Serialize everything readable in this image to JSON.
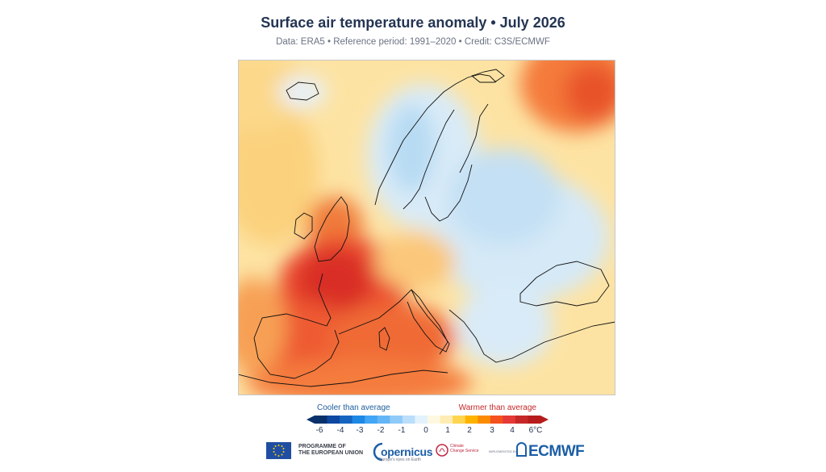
{
  "title": "Surface air temperature anomaly • July 2026",
  "subtitle": "Data: ERA5 • Reference period: 1991–2020 • Credit: C3S/ECMWF",
  "map": {
    "region": "Europe",
    "variable": "surface air temperature anomaly",
    "anomaly_regions": [
      {
        "name": "Iberian Peninsula",
        "level": 3
      },
      {
        "name": "France",
        "level": 4
      },
      {
        "name": "Mediterranean",
        "level": 3
      },
      {
        "name": "Ireland and Britain",
        "level": 3
      },
      {
        "name": "Scandinavia",
        "level": -1
      },
      {
        "name": "Eastern Europe",
        "level": -1
      },
      {
        "name": "Balkans",
        "level": -1
      },
      {
        "name": "Arctic northeast",
        "level": 3
      }
    ]
  },
  "legend": {
    "cool_label": "Cooler than average",
    "warm_label": "Warmer than average",
    "ticks": [
      "-6",
      "-4",
      "-3",
      "-2",
      "-1",
      "0",
      "1",
      "2",
      "3",
      "4",
      "6°C"
    ],
    "colors": [
      "#08306b",
      "#0d47a1",
      "#1565c0",
      "#1e88e5",
      "#42a5f5",
      "#64b5f6",
      "#90caf9",
      "#bbdefb",
      "#e3f2fd",
      "#fff8e1",
      "#ffecb3",
      "#ffd54f",
      "#ffb300",
      "#fb8c00",
      "#f4511e",
      "#e53935",
      "#c62828",
      "#b71c1c"
    ]
  },
  "logos": {
    "eu_line1": "PROGRAMME OF",
    "eu_line2": "THE EUROPEAN UNION",
    "copernicus": "opernicus",
    "copernicus_sub": "Europe's eyes on Earth",
    "c3s_line1": "Climate",
    "c3s_line2": "Change Service",
    "implemented_by": "IMPLEMENTED BY",
    "ecmwf": "ECMWF"
  }
}
